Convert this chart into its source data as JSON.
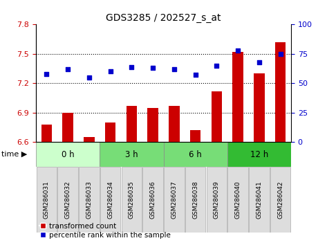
{
  "title": "GDS3285 / 202527_s_at",
  "samples": [
    "GSM286031",
    "GSM286032",
    "GSM286033",
    "GSM286034",
    "GSM286035",
    "GSM286036",
    "GSM286037",
    "GSM286038",
    "GSM286039",
    "GSM286040",
    "GSM286041",
    "GSM286042"
  ],
  "bar_values": [
    6.78,
    6.9,
    6.65,
    6.8,
    6.97,
    6.95,
    6.97,
    6.72,
    7.12,
    7.52,
    7.3,
    7.62
  ],
  "percentile_values": [
    58,
    62,
    55,
    60,
    64,
    63,
    62,
    57,
    65,
    78,
    68,
    75
  ],
  "ylim_left": [
    6.6,
    7.8
  ],
  "yticks_left": [
    6.6,
    6.9,
    7.2,
    7.5,
    7.8
  ],
  "ylim_right": [
    0,
    100
  ],
  "yticks_right": [
    0,
    25,
    50,
    75,
    100
  ],
  "bar_color": "#CC0000",
  "dot_color": "#0000CC",
  "groups": [
    {
      "label": "0 h",
      "start": 0,
      "end": 3,
      "color": "#ccffcc"
    },
    {
      "label": "3 h",
      "start": 3,
      "end": 6,
      "color": "#77dd77"
    },
    {
      "label": "6 h",
      "start": 6,
      "end": 9,
      "color": "#77dd77"
    },
    {
      "label": "12 h",
      "start": 9,
      "end": 12,
      "color": "#33bb33"
    }
  ],
  "left_label_color": "#CC0000",
  "right_label_color": "#0000CC"
}
